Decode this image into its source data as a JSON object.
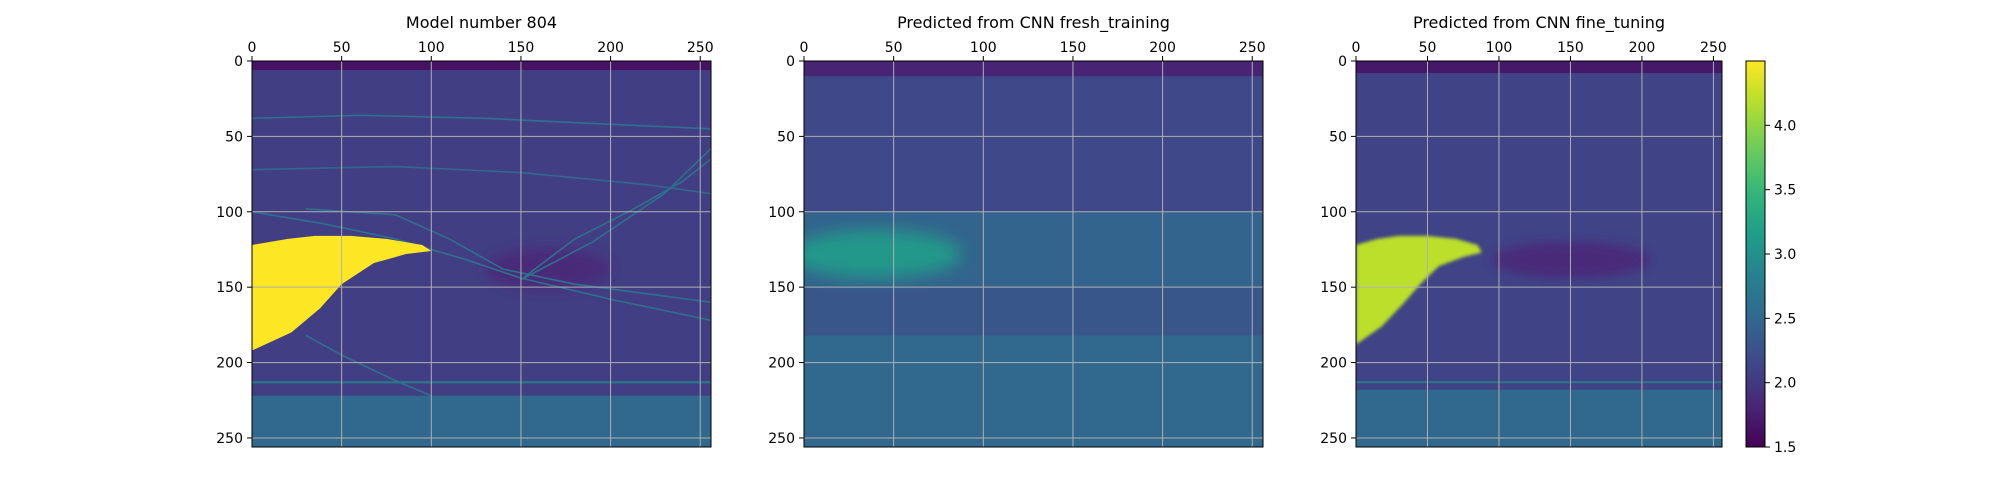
{
  "chart_data": [
    {
      "type": "heatmap",
      "title": "Model number 804",
      "xlim": [
        0,
        256
      ],
      "ylim": [
        256,
        0
      ],
      "xticks": [
        0,
        50,
        100,
        150,
        200,
        250
      ],
      "yticks": [
        0,
        50,
        100,
        150,
        200,
        250
      ],
      "x_axis_position": "top",
      "grid": true,
      "image_size": [
        256,
        256
      ],
      "background_value": 2.05,
      "features": {
        "top_band": {
          "rows": [
            0,
            6
          ],
          "value": 1.65
        },
        "yellow_body": {
          "value": 4.5,
          "outline": [
            [
              0,
              122
            ],
            [
              20,
              118
            ],
            [
              35,
              116
            ],
            [
              55,
              116
            ],
            [
              75,
              118
            ],
            [
              95,
              122
            ],
            [
              100,
              126
            ],
            [
              86,
              128
            ],
            [
              68,
              134
            ],
            [
              50,
              148
            ],
            [
              38,
              164
            ],
            [
              22,
              180
            ],
            [
              0,
              192
            ]
          ]
        },
        "low_velocity_lens": {
          "value": 1.85,
          "center": [
            165,
            138
          ],
          "radius": [
            35,
            14
          ]
        },
        "deep_layer": {
          "rows": [
            222,
            256
          ],
          "value": 2.5
        },
        "thin_layer": {
          "row": 213,
          "value": 2.7
        },
        "reflector_lines": [
          {
            "value": 2.6,
            "points": [
              [
                0,
                38
              ],
              [
                60,
                36
              ],
              [
                130,
                38
              ],
              [
                200,
                42
              ],
              [
                256,
                45
              ]
            ]
          },
          {
            "value": 2.5,
            "points": [
              [
                0,
                72
              ],
              [
                80,
                70
              ],
              [
                150,
                74
              ],
              [
                220,
                82
              ],
              [
                256,
                88
              ]
            ]
          },
          {
            "value": 2.6,
            "points": [
              [
                0,
                100
              ],
              [
                40,
                108
              ],
              [
                80,
                118
              ],
              [
                120,
                132
              ],
              [
                150,
                144
              ],
              [
                200,
                158
              ],
              [
                256,
                172
              ]
            ]
          },
          {
            "value": 2.6,
            "points": [
              [
                30,
                98
              ],
              [
                80,
                102
              ],
              [
                110,
                118
              ],
              [
                140,
                138
              ],
              [
                180,
                148
              ],
              [
                256,
                160
              ]
            ]
          },
          {
            "value": 2.6,
            "points": [
              [
                30,
                182
              ],
              [
                50,
                195
              ],
              [
                80,
                212
              ],
              [
                100,
                222
              ]
            ]
          },
          {
            "value": 2.6,
            "points": [
              [
                150,
                145
              ],
              [
                180,
                118
              ],
              [
                210,
                100
              ],
              [
                240,
                80
              ],
              [
                256,
                65
              ]
            ]
          },
          {
            "value": 2.6,
            "points": [
              [
                150,
                145
              ],
              [
                190,
                120
              ],
              [
                230,
                88
              ],
              [
                256,
                58
              ]
            ]
          }
        ]
      }
    },
    {
      "type": "heatmap",
      "title": "Predicted from CNN fresh_training",
      "xlim": [
        0,
        256
      ],
      "ylim": [
        256,
        0
      ],
      "xticks": [
        0,
        50,
        100,
        150,
        200,
        250
      ],
      "yticks": [
        0,
        50,
        100,
        150,
        200,
        250
      ],
      "x_axis_position": "top",
      "grid": true,
      "image_size": [
        256,
        256
      ],
      "background_value": 2.15,
      "features": {
        "top_band": {
          "rows": [
            0,
            10
          ],
          "value": 1.8
        },
        "mid_band": {
          "rows": [
            100,
            150
          ],
          "value": 2.45
        },
        "bright_blob": {
          "value": 3.1,
          "center": [
            40,
            128
          ],
          "radius": [
            48,
            16
          ]
        },
        "lower_band": {
          "rows": [
            150,
            182
          ],
          "value": 2.3
        },
        "deep_band": {
          "rows": [
            182,
            256
          ],
          "value": 2.5
        }
      }
    },
    {
      "type": "heatmap",
      "title": "Predicted from CNN fine_tuning",
      "xlim": [
        0,
        256
      ],
      "ylim": [
        256,
        0
      ],
      "xticks": [
        0,
        50,
        100,
        150,
        200,
        250
      ],
      "yticks": [
        0,
        50,
        100,
        150,
        200,
        250
      ],
      "x_axis_position": "top",
      "grid": true,
      "image_size": [
        256,
        256
      ],
      "background_value": 2.1,
      "features": {
        "top_band": {
          "rows": [
            0,
            8
          ],
          "value": 1.7
        },
        "yellow_body": {
          "value": 4.2,
          "outline": [
            [
              0,
              122
            ],
            [
              15,
              118
            ],
            [
              30,
              116
            ],
            [
              50,
              116
            ],
            [
              70,
              118
            ],
            [
              85,
              122
            ],
            [
              88,
              127
            ],
            [
              75,
              130
            ],
            [
              58,
              136
            ],
            [
              45,
              148
            ],
            [
              32,
              162
            ],
            [
              18,
              176
            ],
            [
              0,
              188
            ]
          ]
        },
        "dark_lens": {
          "value": 1.85,
          "center": [
            150,
            132
          ],
          "radius": [
            55,
            12
          ]
        },
        "deep_layer": {
          "rows": [
            218,
            256
          ],
          "value": 2.5
        },
        "thin_layer": {
          "row": 213,
          "value": 2.7
        }
      }
    }
  ],
  "colorbar": {
    "ticks": [
      "4.0",
      "3.5",
      "3.0",
      "2.5",
      "2.0",
      "1.5"
    ],
    "tick_values": [
      4.0,
      3.5,
      3.0,
      2.5,
      2.0,
      1.5
    ],
    "range": [
      1.5,
      4.5
    ],
    "colormap": "viridis"
  },
  "colors": {
    "yellow": "#fde725",
    "green": "#5ec962",
    "teal": "#21918c",
    "blue": "#3b528b",
    "purple": "#440154"
  }
}
